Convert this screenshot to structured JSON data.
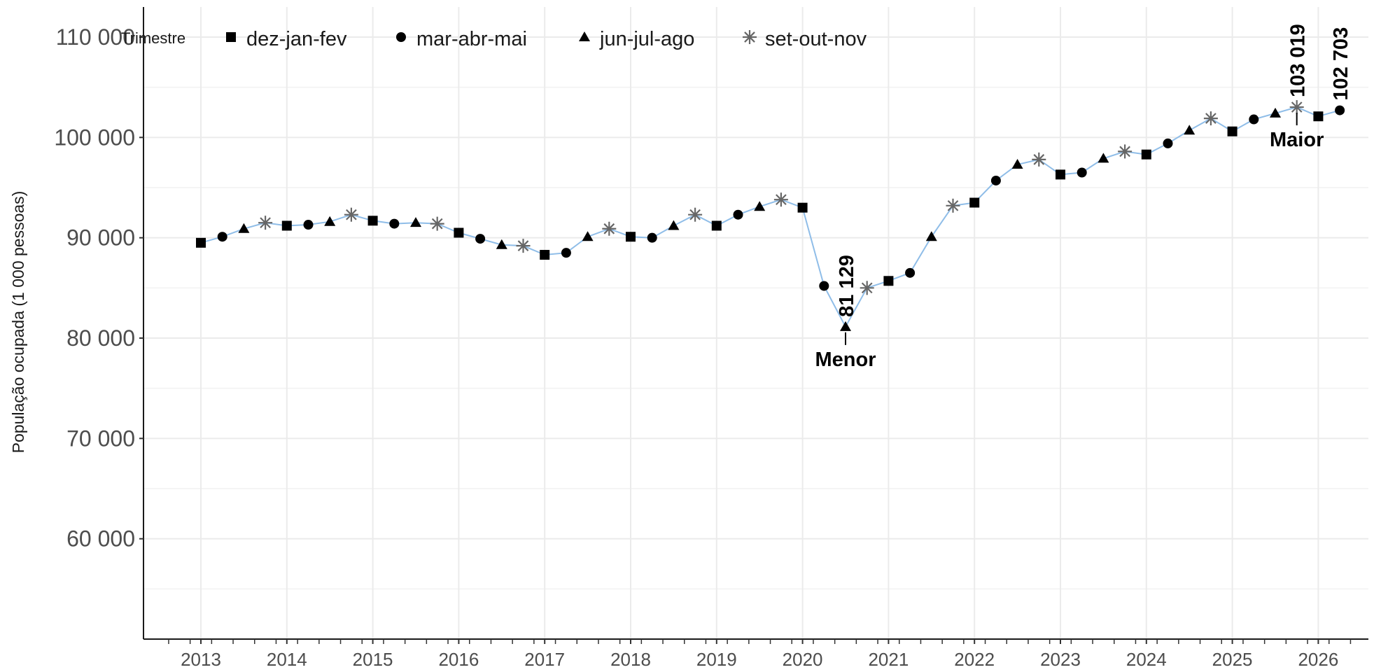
{
  "chart_data": {
    "type": "line",
    "title": "",
    "ylabel": "População ocupada (1 000 pessoas)",
    "xlabel": "",
    "ylim": [
      50000,
      113000
    ],
    "y_ticks": [
      60000,
      70000,
      80000,
      90000,
      100000,
      110000
    ],
    "y_tick_labels": [
      "60 000",
      "70 000",
      "80 000",
      "90 000",
      "100 000",
      "110 000"
    ],
    "x_ticks": [
      "2013",
      "2014",
      "2015",
      "2016",
      "2017",
      "2018",
      "2019",
      "2020",
      "2021",
      "2022",
      "2023",
      "2024",
      "2025",
      "2026"
    ],
    "grid": true,
    "legend_position": "top-left",
    "line_color": "#8fbde8",
    "marker_color": "#000000",
    "star_color": "#666666",
    "legend": {
      "title": "Trimestre",
      "entries": [
        {
          "label": "dez-jan-fev",
          "marker": "square"
        },
        {
          "label": "mar-abr-mai",
          "marker": "circle"
        },
        {
          "label": "jun-jul-ago",
          "marker": "triangle"
        },
        {
          "label": "set-out-nov",
          "marker": "asterisk"
        }
      ]
    },
    "series": [
      {
        "values": [
          89500,
          90100,
          90900,
          91500,
          91200,
          91300,
          91600,
          92300,
          91700,
          91400,
          91500,
          91400,
          90500,
          89900,
          89300,
          89200,
          88300,
          88500,
          90100,
          90900,
          90100,
          90000,
          91200,
          92300,
          91200,
          92300,
          93100,
          93800,
          93000,
          85200,
          81129,
          85000,
          85700,
          86500,
          90100,
          93200,
          93500,
          95700,
          97300,
          97800,
          96300,
          96500,
          97900,
          98600,
          98300,
          99400,
          100700,
          101900,
          100600,
          101800,
          102400,
          103019,
          102100,
          102703
        ],
        "start_year": 2013
      }
    ],
    "annotations": [
      {
        "value_label": "81 129",
        "word": "Menor"
      },
      {
        "value_label": "103 019",
        "word": "Maior"
      },
      {
        "value_label": "102 703",
        "word": ""
      }
    ]
  }
}
